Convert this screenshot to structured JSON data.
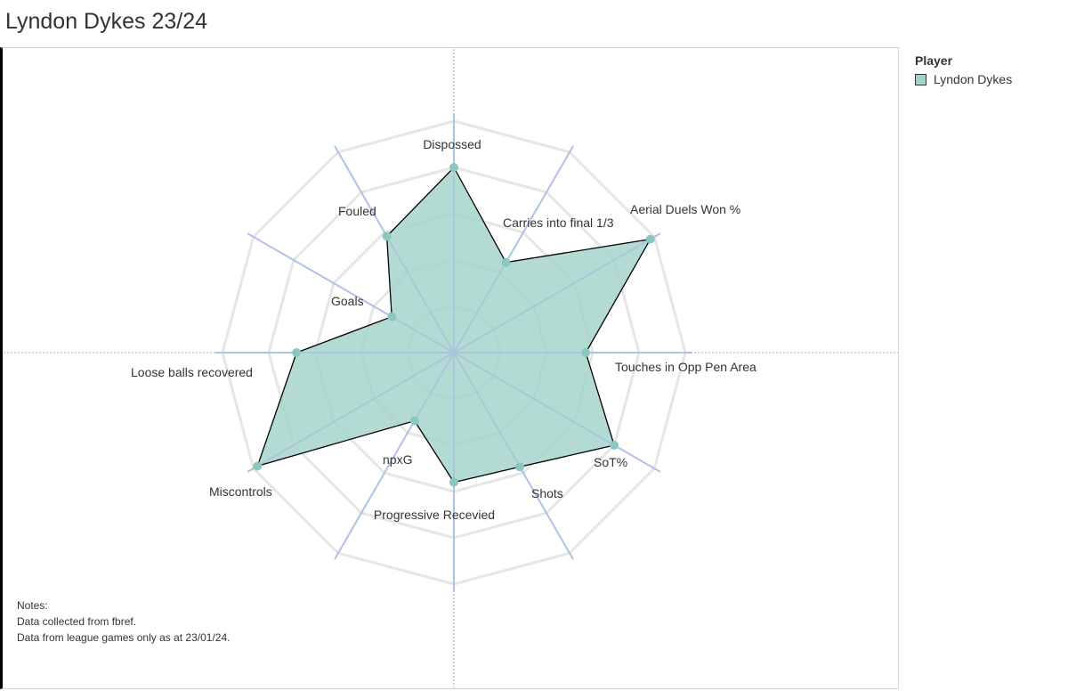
{
  "title": "Lyndon Dykes 23/24",
  "legend": {
    "title": "Player",
    "items": [
      {
        "label": "Lyndon Dykes",
        "color": "#a3d2cb"
      }
    ]
  },
  "notes": {
    "heading": "Notes:",
    "lines": [
      "Data collected from fbref.",
      "Data from league games only as at 23/01/24."
    ]
  },
  "colors": {
    "fill": "#a3d2cb",
    "outline": "#000000",
    "point": "#89c7bf",
    "spoke": "#a9bfe4",
    "ring": "#e6e6e6",
    "crosshair": "#aaaaaa"
  },
  "chart_data": {
    "type": "radar",
    "title": "Lyndon Dykes 23/24",
    "rmax": 100,
    "rings": 5,
    "grid": true,
    "legend_position": "top-right",
    "axes": [
      "Dispossed",
      "Carries into final 1/3",
      "Aerial Duels Won %",
      "Touches in Opp Pen Area",
      "SoT%",
      "Shots",
      "Progressive Recevied",
      "npxG",
      "Miscontrols",
      "Loose balls recovered",
      "Goals",
      "Fouled"
    ],
    "series": [
      {
        "name": "Lyndon Dykes",
        "values": [
          80,
          45,
          98,
          57,
          80,
          57,
          56,
          34,
          98,
          68,
          31,
          58
        ]
      }
    ]
  }
}
